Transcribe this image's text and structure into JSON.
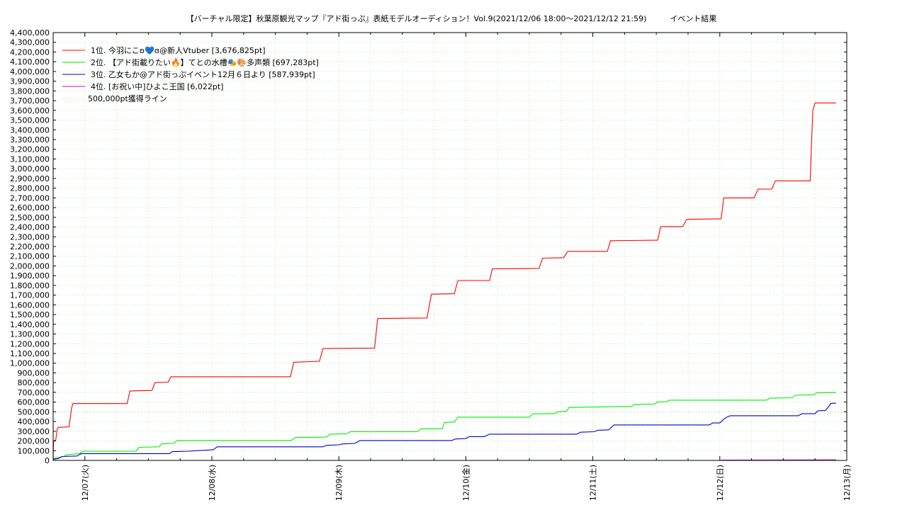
{
  "chart_data": {
    "type": "line",
    "title": "【バーチャル限定】秋葉原観光マップ『アド街っぷ』表紙モデルオーディション！Vol.9(2021/12/06 18:00～2021/12/12 21:59)　　　イベント結果",
    "xlabel": "",
    "ylabel": "",
    "ylim": [
      0,
      4400000
    ],
    "y_tick_step": 100000,
    "xlim": [
      "2021-12-06 18:00",
      "2021-12-13 00:00"
    ],
    "x_ticks": [
      "12/07(火)",
      "12/08(水)",
      "12/09(木)",
      "12/10(金)",
      "12/11(土)",
      "12/12(日)",
      "12/13(月)"
    ],
    "grid": true,
    "legend_position": "top-left",
    "reference_line": {
      "name": "500,000pt獲得ライン",
      "value": 500000,
      "color": "#9ad69a"
    },
    "series": [
      {
        "name": "1位. 今羽にこ",
        "label_suffix": "ʚ@新人Vtuber [3,676,825pt]",
        "color": "#ff0000",
        "points": [
          [
            "2021-12-06 18:00",
            0
          ],
          [
            "2021-12-06 18:05",
            200000
          ],
          [
            "2021-12-06 18:30",
            210000
          ],
          [
            "2021-12-06 18:45",
            320000
          ],
          [
            "2021-12-06 19:00",
            340000
          ],
          [
            "2021-12-06 21:00",
            345000
          ],
          [
            "2021-12-06 21:30",
            540000
          ],
          [
            "2021-12-06 21:45",
            585000
          ],
          [
            "2021-12-07 08:00",
            585000
          ],
          [
            "2021-12-07 08:30",
            715000
          ],
          [
            "2021-12-07 12:40",
            720000
          ],
          [
            "2021-12-07 13:15",
            800000
          ],
          [
            "2021-12-07 15:45",
            805000
          ],
          [
            "2021-12-07 16:15",
            860000
          ],
          [
            "2021-12-08 14:50",
            860000
          ],
          [
            "2021-12-08 15:30",
            1010000
          ],
          [
            "2021-12-08 20:20",
            1020000
          ],
          [
            "2021-12-08 21:00",
            1150000
          ],
          [
            "2021-12-09 06:45",
            1155000
          ],
          [
            "2021-12-09 07:20",
            1460000
          ],
          [
            "2021-12-09 16:40",
            1465000
          ],
          [
            "2021-12-09 17:30",
            1710000
          ],
          [
            "2021-12-09 21:50",
            1715000
          ],
          [
            "2021-12-09 22:30",
            1850000
          ],
          [
            "2021-12-10 04:30",
            1850000
          ],
          [
            "2021-12-10 05:00",
            1970000
          ],
          [
            "2021-12-10 13:50",
            1975000
          ],
          [
            "2021-12-10 14:30",
            2080000
          ],
          [
            "2021-12-10 18:30",
            2085000
          ],
          [
            "2021-12-10 19:15",
            2150000
          ],
          [
            "2021-12-11 02:45",
            2150000
          ],
          [
            "2021-12-11 03:20",
            2260000
          ],
          [
            "2021-12-11 12:15",
            2265000
          ],
          [
            "2021-12-11 12:50",
            2405000
          ],
          [
            "2021-12-11 17:00",
            2405000
          ],
          [
            "2021-12-11 17:45",
            2480000
          ],
          [
            "2021-12-12 00:15",
            2485000
          ],
          [
            "2021-12-12 00:45",
            2700000
          ],
          [
            "2021-12-12 06:30",
            2700000
          ],
          [
            "2021-12-12 07:15",
            2790000
          ],
          [
            "2021-12-12 09:50",
            2790000
          ],
          [
            "2021-12-12 10:30",
            2875000
          ],
          [
            "2021-12-12 17:05",
            2875000
          ],
          [
            "2021-12-12 17:20",
            3250000
          ],
          [
            "2021-12-12 17:35",
            3600000
          ],
          [
            "2021-12-12 18:00",
            3676825
          ],
          [
            "2021-12-12 21:59",
            3676825
          ]
        ]
      },
      {
        "name": "2位. 【アド街載りたい",
        "label_suffix": "】てとの水槽多声類 [697,283pt]",
        "color": "#00ee00",
        "points": [
          [
            "2021-12-06 18:00",
            20000
          ],
          [
            "2021-12-06 20:00",
            40000
          ],
          [
            "2021-12-06 20:45",
            60000
          ],
          [
            "2021-12-06 23:00",
            70000
          ],
          [
            "2021-12-06 23:40",
            95000
          ],
          [
            "2021-12-07 09:40",
            95000
          ],
          [
            "2021-12-07 10:15",
            135000
          ],
          [
            "2021-12-07 14:00",
            140000
          ],
          [
            "2021-12-07 14:30",
            170000
          ],
          [
            "2021-12-07 16:40",
            175000
          ],
          [
            "2021-12-07 17:30",
            205000
          ],
          [
            "2021-12-08 15:00",
            205000
          ],
          [
            "2021-12-08 15:45",
            235000
          ],
          [
            "2021-12-08 21:40",
            240000
          ],
          [
            "2021-12-08 22:20",
            270000
          ],
          [
            "2021-12-09 01:30",
            275000
          ],
          [
            "2021-12-09 02:10",
            295000
          ],
          [
            "2021-12-09 14:50",
            295000
          ],
          [
            "2021-12-09 15:30",
            325000
          ],
          [
            "2021-12-09 19:30",
            325000
          ],
          [
            "2021-12-09 20:00",
            390000
          ],
          [
            "2021-12-09 21:50",
            395000
          ],
          [
            "2021-12-09 22:30",
            445000
          ],
          [
            "2021-12-10 12:00",
            445000
          ],
          [
            "2021-12-10 12:40",
            480000
          ],
          [
            "2021-12-10 16:45",
            480000
          ],
          [
            "2021-12-10 17:20",
            500000
          ],
          [
            "2021-12-10 19:00",
            505000
          ],
          [
            "2021-12-10 19:30",
            545000
          ],
          [
            "2021-12-11 07:20",
            555000
          ],
          [
            "2021-12-11 07:50",
            575000
          ],
          [
            "2021-12-11 11:40",
            580000
          ],
          [
            "2021-12-11 12:15",
            600000
          ],
          [
            "2021-12-11 14:00",
            605000
          ],
          [
            "2021-12-11 14:30",
            620000
          ],
          [
            "2021-12-12 08:50",
            620000
          ],
          [
            "2021-12-12 09:30",
            640000
          ],
          [
            "2021-12-12 13:40",
            645000
          ],
          [
            "2021-12-12 14:15",
            670000
          ],
          [
            "2021-12-12 17:40",
            675000
          ],
          [
            "2021-12-12 18:30",
            697283
          ],
          [
            "2021-12-12 21:59",
            697283
          ]
        ]
      },
      {
        "name": "3位. 乙女もか@アド街っぷイベント12月６日より",
        "label_suffix": " [587,939pt]",
        "color": "#0000cc",
        "points": [
          [
            "2021-12-06 18:00",
            10000
          ],
          [
            "2021-12-06 19:00",
            20000
          ],
          [
            "2021-12-06 19:40",
            40000
          ],
          [
            "2021-12-06 22:30",
            45000
          ],
          [
            "2021-12-06 23:20",
            70000
          ],
          [
            "2021-12-07 16:00",
            70000
          ],
          [
            "2021-12-07 16:30",
            90000
          ],
          [
            "2021-12-07 19:30",
            95000
          ],
          [
            "2021-12-08 00:15",
            110000
          ],
          [
            "2021-12-08 01:00",
            140000
          ],
          [
            "2021-12-08 21:00",
            140000
          ],
          [
            "2021-12-08 21:40",
            155000
          ],
          [
            "2021-12-09 00:00",
            160000
          ],
          [
            "2021-12-09 00:40",
            170000
          ],
          [
            "2021-12-09 03:00",
            175000
          ],
          [
            "2021-12-09 04:00",
            205000
          ],
          [
            "2021-12-09 21:20",
            205000
          ],
          [
            "2021-12-09 22:00",
            220000
          ],
          [
            "2021-12-10 00:00",
            225000
          ],
          [
            "2021-12-10 00:40",
            245000
          ],
          [
            "2021-12-10 03:30",
            245000
          ],
          [
            "2021-12-10 04:30",
            270000
          ],
          [
            "2021-12-10 21:00",
            270000
          ],
          [
            "2021-12-10 21:40",
            290000
          ],
          [
            "2021-12-11 00:10",
            295000
          ],
          [
            "2021-12-11 01:00",
            310000
          ],
          [
            "2021-12-11 03:00",
            315000
          ],
          [
            "2021-12-11 04:00",
            365000
          ],
          [
            "2021-12-11 22:00",
            365000
          ],
          [
            "2021-12-11 22:40",
            385000
          ],
          [
            "2021-12-12 00:00",
            385000
          ],
          [
            "2021-12-12 00:40",
            420000
          ],
          [
            "2021-12-12 01:20",
            445000
          ],
          [
            "2021-12-12 02:00",
            460000
          ],
          [
            "2021-12-12 14:50",
            460000
          ],
          [
            "2021-12-12 15:30",
            480000
          ],
          [
            "2021-12-12 18:00",
            480000
          ],
          [
            "2021-12-12 18:30",
            510000
          ],
          [
            "2021-12-12 20:00",
            515000
          ],
          [
            "2021-12-12 20:40",
            560000
          ],
          [
            "2021-12-12 21:00",
            587939
          ],
          [
            "2021-12-12 21:59",
            587939
          ]
        ]
      },
      {
        "name": "4位. [お祝い中]ひよこ王国",
        "label_suffix": " [6,022pt]",
        "color": "#cc00cc",
        "points": [
          [
            "2021-12-12 00:00",
            0
          ],
          [
            "2021-12-12 00:30",
            3000
          ],
          [
            "2021-12-12 21:59",
            6022
          ]
        ]
      }
    ],
    "legend": [
      "1位. 今羽にこʚ💙ɞ@新人Vtuber [3,676,825pt]",
      "2位. 【アド街載りたい🔥】てとの水槽🎭🎨多声類 [697,283pt]",
      "3位. 乙女もか@アド街っぷイベント12月６日より [587,939pt]",
      "4位. [お祝い中]ひよこ王国 [6,022pt]",
      "500,000pt獲得ライン"
    ]
  }
}
